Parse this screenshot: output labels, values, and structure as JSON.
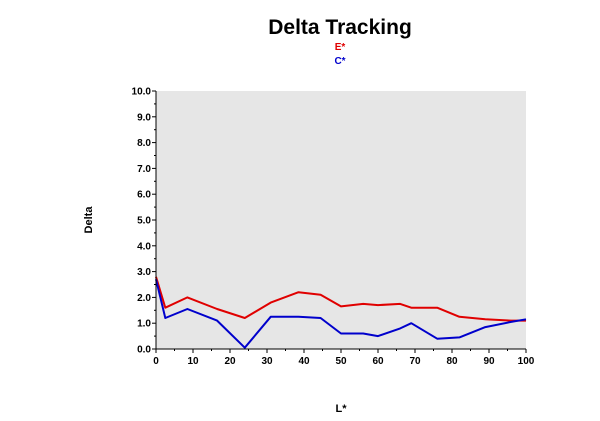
{
  "chart_data": {
    "type": "line",
    "title": "Delta Tracking",
    "xlabel": "L*",
    "ylabel": "Delta",
    "xlim": [
      0,
      100
    ],
    "ylim": [
      0,
      10
    ],
    "xticks": [
      0,
      10,
      20,
      30,
      40,
      50,
      60,
      70,
      80,
      90,
      100
    ],
    "yticks": [
      0.0,
      1.0,
      2.0,
      3.0,
      4.0,
      5.0,
      6.0,
      7.0,
      8.0,
      9.0,
      10.0
    ],
    "xtick_labels": [
      "0",
      "10",
      "20",
      "30",
      "40",
      "50",
      "60",
      "70",
      "80",
      "90",
      "100"
    ],
    "ytick_labels": [
      "0.0",
      "1.0",
      "2.0",
      "3.0",
      "4.0",
      "5.0",
      "6.0",
      "7.0",
      "8.0",
      "9.0",
      "10.0"
    ],
    "grid": false,
    "legend_position": "top-center",
    "plot_background": "#e6e6e6",
    "series": [
      {
        "name": "E*",
        "color": "#e00000",
        "x": [
          0,
          2.5,
          8.5,
          16.5,
          24,
          31,
          38.5,
          44.5,
          50,
          56,
          60,
          66,
          69,
          76,
          82,
          89,
          96,
          100
        ],
        "y": [
          2.8,
          1.6,
          2.0,
          1.55,
          1.2,
          1.8,
          2.2,
          2.1,
          1.65,
          1.75,
          1.7,
          1.75,
          1.6,
          1.6,
          1.25,
          1.15,
          1.1,
          1.1
        ]
      },
      {
        "name": "C*",
        "color": "#0000cc",
        "x": [
          0,
          2.5,
          8.5,
          16.5,
          24,
          31,
          38.5,
          44.5,
          50,
          56,
          60,
          66,
          69,
          76,
          82,
          89,
          96,
          100
        ],
        "y": [
          2.7,
          1.2,
          1.55,
          1.1,
          0.05,
          1.25,
          1.25,
          1.2,
          0.6,
          0.6,
          0.5,
          0.8,
          1.0,
          0.4,
          0.45,
          0.85,
          1.05,
          1.15
        ]
      }
    ]
  }
}
